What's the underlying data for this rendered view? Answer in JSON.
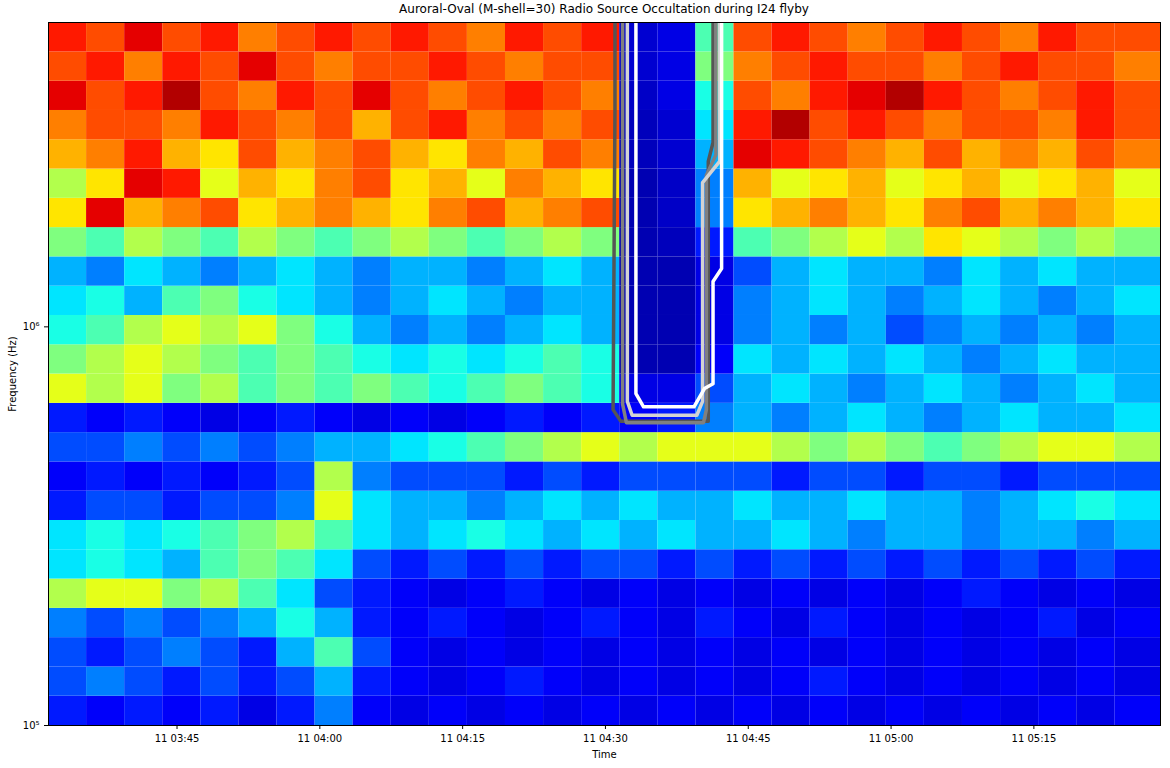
{
  "chart_data": {
    "type": "heatmap",
    "title": "Auroral-Oval (M-shell=30) Radio Source Occultation during I24 flyby",
    "x_label": "Time",
    "y_label": "Frequency (Hz)",
    "log": "y",
    "xlim": [
      211.5,
      328.3
    ],
    "ylim": [
      100000,
      5800000
    ],
    "xticks": [
      {
        "value": 225,
        "label": "11 03:45"
      },
      {
        "value": 240,
        "label": "11 04:00"
      },
      {
        "value": 255,
        "label": "11 04:15"
      },
      {
        "value": 270,
        "label": "11 04:30"
      },
      {
        "value": 285,
        "label": "11 04:45"
      },
      {
        "value": 300,
        "label": "11 05:00"
      },
      {
        "value": 315,
        "label": "11 05:15"
      }
    ],
    "yticks": [
      {
        "value": 100000,
        "label": "10⁵"
      },
      {
        "value": 1000000,
        "label": "10⁶"
      }
    ],
    "color": "jet",
    "zlim": [
      0,
      1
    ],
    "time_edges": [
      211.5,
      215.5,
      219.5,
      223.5,
      227.5,
      231.5,
      235.5,
      239.5,
      243.5,
      247.5,
      251.5,
      255.5,
      259.5,
      263.5,
      267.5,
      271.5,
      275.5,
      279.5,
      283.5,
      287.5,
      291.5,
      295.5,
      299.5,
      303.5,
      307.5,
      311.5,
      315.5,
      319.5,
      323.5,
      328.3
    ],
    "frequency_edges": [
      100000,
      118430,
      140260,
      166110,
      196720,
      232980,
      275920,
      326770,
      387000,
      458330,
      542800,
      642840,
      761320,
      901630,
      1067800,
      1264600,
      1497700,
      1773700,
      2100600,
      2487700,
      2946200,
      3489200,
      4132300,
      4893900,
      5800000
    ],
    "z": [
      [
        0.15,
        0.12,
        0.15,
        0.12,
        0.15,
        0.1,
        0.15,
        0.25,
        0.12,
        0.1,
        0.12,
        0.1,
        0.12,
        0.1,
        0.12,
        0.1,
        0.12,
        0.1,
        0.12,
        0.1,
        0.12,
        0.1,
        0.12,
        0.1,
        0.12,
        0.1,
        0.12,
        0.1,
        0.12
      ],
      [
        0.2,
        0.25,
        0.2,
        0.15,
        0.2,
        0.15,
        0.2,
        0.3,
        0.15,
        0.12,
        0.1,
        0.12,
        0.15,
        0.12,
        0.1,
        0.12,
        0.1,
        0.12,
        0.1,
        0.12,
        0.15,
        0.12,
        0.1,
        0.12,
        0.1,
        0.12,
        0.1,
        0.12,
        0.1
      ],
      [
        0.2,
        0.15,
        0.2,
        0.25,
        0.2,
        0.15,
        0.3,
        0.45,
        0.2,
        0.12,
        0.1,
        0.12,
        0.1,
        0.12,
        0.1,
        0.12,
        0.1,
        0.12,
        0.1,
        0.12,
        0.1,
        0.12,
        0.1,
        0.12,
        0.1,
        0.12,
        0.1,
        0.12,
        0.1
      ],
      [
        0.25,
        0.2,
        0.25,
        0.2,
        0.25,
        0.3,
        0.4,
        0.3,
        0.15,
        0.12,
        0.15,
        0.12,
        0.1,
        0.12,
        0.15,
        0.12,
        0.1,
        0.15,
        0.12,
        0.1,
        0.15,
        0.12,
        0.1,
        0.12,
        0.1,
        0.12,
        0.15,
        0.1,
        0.12
      ],
      [
        0.55,
        0.6,
        0.6,
        0.5,
        0.55,
        0.45,
        0.35,
        0.2,
        0.15,
        0.12,
        0.1,
        0.12,
        0.15,
        0.12,
        0.1,
        0.12,
        0.1,
        0.12,
        0.1,
        0.12,
        0.1,
        0.12,
        0.1,
        0.12,
        0.15,
        0.12,
        0.1,
        0.12,
        0.1
      ],
      [
        0.35,
        0.4,
        0.35,
        0.3,
        0.45,
        0.5,
        0.45,
        0.35,
        0.2,
        0.15,
        0.2,
        0.15,
        0.2,
        0.15,
        0.2,
        0.2,
        0.15,
        0.2,
        0.15,
        0.2,
        0.15,
        0.2,
        0.15,
        0.2,
        0.15,
        0.2,
        0.15,
        0.2,
        0.15
      ],
      [
        0.35,
        0.4,
        0.35,
        0.4,
        0.45,
        0.5,
        0.55,
        0.45,
        0.35,
        0.3,
        0.35,
        0.4,
        0.35,
        0.3,
        0.35,
        0.3,
        0.35,
        0.3,
        0.3,
        0.35,
        0.3,
        0.25,
        0.3,
        0.3,
        0.25,
        0.3,
        0.3,
        0.25,
        0.3
      ],
      [
        0.15,
        0.2,
        0.2,
        0.15,
        0.2,
        0.2,
        0.25,
        0.6,
        0.35,
        0.3,
        0.3,
        0.25,
        0.3,
        0.35,
        0.3,
        0.35,
        0.3,
        0.3,
        0.35,
        0.3,
        0.3,
        0.35,
        0.3,
        0.3,
        0.25,
        0.3,
        0.35,
        0.4,
        0.35
      ],
      [
        0.12,
        0.15,
        0.12,
        0.15,
        0.12,
        0.15,
        0.2,
        0.55,
        0.25,
        0.2,
        0.2,
        0.2,
        0.15,
        0.2,
        0.15,
        0.2,
        0.2,
        0.2,
        0.2,
        0.15,
        0.2,
        0.2,
        0.15,
        0.2,
        0.2,
        0.15,
        0.2,
        0.2,
        0.2
      ],
      [
        0.2,
        0.2,
        0.25,
        0.2,
        0.25,
        0.2,
        0.25,
        0.3,
        0.3,
        0.35,
        0.4,
        0.45,
        0.5,
        0.55,
        0.6,
        0.55,
        0.6,
        0.6,
        0.6,
        0.55,
        0.5,
        0.55,
        0.5,
        0.45,
        0.5,
        0.55,
        0.6,
        0.6,
        0.55
      ],
      [
        0.15,
        0.12,
        0.15,
        0.12,
        0.1,
        0.12,
        0.15,
        0.12,
        0.1,
        0.12,
        0.1,
        0.12,
        0.15,
        0.12,
        0.15,
        0.12,
        0.15,
        0.25,
        0.3,
        0.25,
        0.3,
        0.35,
        0.3,
        0.25,
        0.3,
        0.35,
        0.3,
        0.3,
        0.35
      ],
      [
        0.6,
        0.55,
        0.6,
        0.5,
        0.55,
        0.45,
        0.5,
        0.45,
        0.5,
        0.45,
        0.4,
        0.45,
        0.5,
        0.45,
        0.4,
        0.1,
        0.1,
        0.2,
        0.3,
        0.35,
        0.3,
        0.25,
        0.3,
        0.35,
        0.3,
        0.25,
        0.3,
        0.35,
        0.3
      ],
      [
        0.5,
        0.55,
        0.6,
        0.55,
        0.5,
        0.45,
        0.5,
        0.45,
        0.4,
        0.35,
        0.4,
        0.35,
        0.4,
        0.45,
        0.4,
        0.05,
        0.05,
        0.12,
        0.35,
        0.3,
        0.35,
        0.3,
        0.35,
        0.3,
        0.25,
        0.3,
        0.35,
        0.3,
        0.3
      ],
      [
        0.4,
        0.45,
        0.55,
        0.6,
        0.55,
        0.6,
        0.5,
        0.4,
        0.3,
        0.25,
        0.3,
        0.25,
        0.3,
        0.35,
        0.3,
        0.05,
        0.05,
        0.1,
        0.25,
        0.3,
        0.25,
        0.3,
        0.2,
        0.25,
        0.3,
        0.25,
        0.3,
        0.25,
        0.3
      ],
      [
        0.35,
        0.4,
        0.3,
        0.45,
        0.5,
        0.4,
        0.35,
        0.3,
        0.25,
        0.3,
        0.35,
        0.3,
        0.25,
        0.3,
        0.3,
        0.05,
        0.05,
        0.1,
        0.25,
        0.3,
        0.35,
        0.3,
        0.25,
        0.3,
        0.35,
        0.3,
        0.25,
        0.3,
        0.35
      ],
      [
        0.3,
        0.25,
        0.35,
        0.3,
        0.25,
        0.3,
        0.35,
        0.3,
        0.25,
        0.3,
        0.3,
        0.25,
        0.3,
        0.35,
        0.3,
        0.05,
        0.05,
        0.1,
        0.2,
        0.3,
        0.35,
        0.3,
        0.3,
        0.25,
        0.35,
        0.3,
        0.35,
        0.3,
        0.3
      ],
      [
        0.5,
        0.45,
        0.55,
        0.5,
        0.45,
        0.55,
        0.5,
        0.45,
        0.5,
        0.55,
        0.5,
        0.45,
        0.5,
        0.55,
        0.5,
        0.05,
        0.06,
        0.15,
        0.45,
        0.5,
        0.55,
        0.6,
        0.55,
        0.65,
        0.6,
        0.55,
        0.5,
        0.55,
        0.5
      ],
      [
        0.65,
        0.9,
        0.7,
        0.75,
        0.8,
        0.65,
        0.7,
        0.75,
        0.7,
        0.65,
        0.75,
        0.8,
        0.7,
        0.75,
        0.8,
        0.05,
        0.07,
        0.25,
        0.65,
        0.7,
        0.75,
        0.7,
        0.65,
        0.75,
        0.8,
        0.7,
        0.75,
        0.7,
        0.65
      ],
      [
        0.55,
        0.65,
        0.9,
        0.85,
        0.6,
        0.7,
        0.65,
        0.75,
        0.8,
        0.65,
        0.7,
        0.6,
        0.75,
        0.7,
        0.65,
        0.05,
        0.07,
        0.25,
        0.7,
        0.6,
        0.65,
        0.7,
        0.6,
        0.65,
        0.7,
        0.6,
        0.65,
        0.7,
        0.6
      ],
      [
        0.7,
        0.75,
        0.85,
        0.7,
        0.65,
        0.8,
        0.7,
        0.75,
        0.8,
        0.7,
        0.65,
        0.75,
        0.7,
        0.8,
        0.75,
        0.06,
        0.08,
        0.3,
        0.9,
        0.85,
        0.8,
        0.75,
        0.7,
        0.8,
        0.7,
        0.75,
        0.7,
        0.8,
        0.75
      ],
      [
        0.75,
        0.8,
        0.8,
        0.75,
        0.85,
        0.8,
        0.75,
        0.8,
        0.7,
        0.8,
        0.85,
        0.75,
        0.8,
        0.75,
        0.8,
        0.06,
        0.08,
        0.35,
        0.85,
        0.95,
        0.8,
        0.85,
        0.8,
        0.75,
        0.8,
        0.8,
        0.75,
        0.85,
        0.8
      ],
      [
        0.9,
        0.8,
        0.85,
        0.95,
        0.8,
        0.75,
        0.85,
        0.8,
        0.9,
        0.8,
        0.75,
        0.8,
        0.85,
        0.8,
        0.75,
        0.07,
        0.1,
        0.4,
        0.8,
        0.75,
        0.85,
        0.9,
        0.95,
        0.85,
        0.8,
        0.75,
        0.8,
        0.85,
        0.8
      ],
      [
        0.8,
        0.85,
        0.75,
        0.85,
        0.8,
        0.9,
        0.8,
        0.75,
        0.8,
        0.8,
        0.85,
        0.8,
        0.75,
        0.8,
        0.8,
        0.08,
        0.1,
        0.5,
        0.75,
        0.8,
        0.85,
        0.8,
        0.8,
        0.75,
        0.8,
        0.85,
        0.8,
        0.8,
        0.75
      ],
      [
        0.85,
        0.8,
        0.9,
        0.8,
        0.85,
        0.75,
        0.8,
        0.85,
        0.8,
        0.85,
        0.8,
        0.75,
        0.85,
        0.8,
        0.85,
        0.08,
        0.1,
        0.45,
        0.8,
        0.85,
        0.8,
        0.75,
        0.8,
        0.85,
        0.8,
        0.75,
        0.85,
        0.8,
        0.8
      ]
    ],
    "contours": [
      {
        "color": "#555555",
        "x": [
          271.0,
          271.0,
          270.8,
          271.6,
          280.8,
          280.8,
          281.3,
          281.3
        ],
        "y": [
          5800000,
          3500000,
          620000,
          580000,
          580000,
          2600000,
          2900000,
          5800000
        ]
      },
      {
        "color": "#808080",
        "x": [
          271.8,
          271.8,
          272.2,
          280.3,
          280.6,
          280.6,
          281.6,
          281.6
        ],
        "y": [
          5800000,
          640000,
          575000,
          575000,
          620000,
          2400000,
          2700000,
          5800000
        ]
      },
      {
        "color": "#d3d3d3",
        "x": [
          272.3,
          272.3,
          272.8,
          279.6,
          280.2,
          280.2,
          282.0,
          282.0
        ],
        "y": [
          5800000,
          650000,
          600000,
          600000,
          650000,
          2300000,
          2600000,
          5800000
        ]
      },
      {
        "color": "#ffffff",
        "x": [
          273.2,
          273.2,
          274.0,
          279.3,
          280.4,
          281.3,
          281.3,
          282.2,
          282.2
        ],
        "y": [
          5800000,
          680000,
          630000,
          630000,
          700000,
          720000,
          1300000,
          1400000,
          5800000
        ]
      }
    ]
  }
}
